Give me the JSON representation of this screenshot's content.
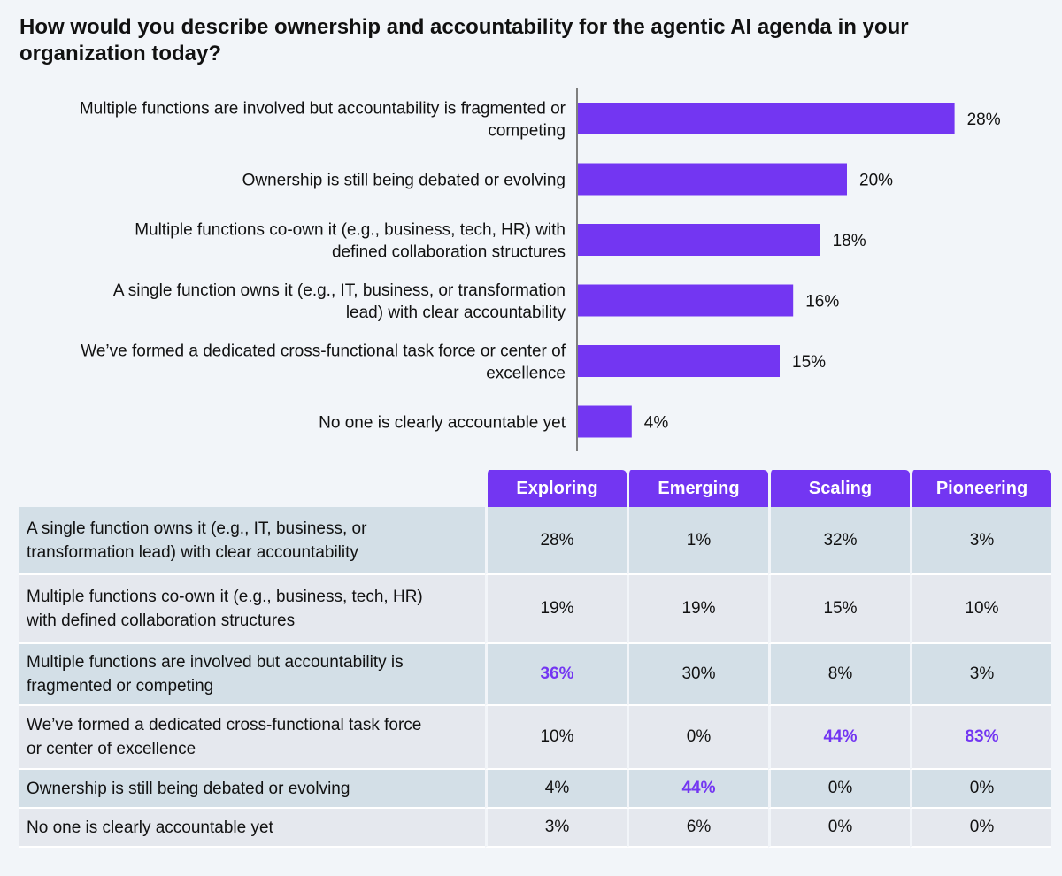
{
  "title": "How would you describe ownership and accountability for the agentic AI agenda in your organization today?",
  "chart_data": {
    "type": "bar",
    "orientation": "horizontal",
    "categories": [
      [
        "Multiple functions are involved but accountability is fragmented or",
        "competing"
      ],
      [
        "Ownership is still being debated or evolving"
      ],
      [
        "Multiple functions co-own it (e.g., business, tech, HR) with",
        "defined collaboration structures"
      ],
      [
        "A single function owns it (e.g., IT, business, or transformation",
        "lead) with clear accountability"
      ],
      [
        "We’ve formed a dedicated cross-functional task force or center of",
        "excellence"
      ],
      [
        "No one is clearly accountable yet"
      ]
    ],
    "values": [
      28,
      20,
      18,
      16,
      15,
      4
    ],
    "value_labels": [
      "28%",
      "20%",
      "18%",
      "16%",
      "15%",
      "4%"
    ],
    "xlim": [
      0,
      30
    ],
    "bar_color": "#7336f2",
    "grid": false
  },
  "table": {
    "columns": [
      "Exploring",
      "Emerging",
      "Scaling",
      "Pioneering"
    ],
    "header_color": "#7336f2",
    "highlight_color": "#7336f2",
    "rows": [
      {
        "label": [
          "A single function owns it (e.g., IT, business, or",
          "transformation lead) with clear accountability"
        ],
        "values": [
          "28%",
          "1%",
          "32%",
          "3%"
        ],
        "highlight": [
          false,
          false,
          false,
          false
        ]
      },
      {
        "label": [
          "Multiple functions co-own it (e.g., business, tech, HR)",
          "with defined collaboration structures"
        ],
        "values": [
          "19%",
          "19%",
          "15%",
          "10%"
        ],
        "highlight": [
          false,
          false,
          false,
          false
        ]
      },
      {
        "label": [
          "Multiple functions are involved but accountability is",
          "fragmented or competing"
        ],
        "values": [
          "36%",
          "30%",
          "8%",
          "3%"
        ],
        "highlight": [
          true,
          false,
          false,
          false
        ]
      },
      {
        "label": [
          "We’ve formed a dedicated cross-functional task force",
          "or center of excellence"
        ],
        "values": [
          "10%",
          "0%",
          "44%",
          "83%"
        ],
        "highlight": [
          false,
          false,
          true,
          true
        ]
      },
      {
        "label": [
          "Ownership is still being debated or evolving"
        ],
        "values": [
          "4%",
          "44%",
          "0%",
          "0%"
        ],
        "highlight": [
          false,
          true,
          false,
          false
        ]
      },
      {
        "label": [
          "No one is clearly accountable yet"
        ],
        "values": [
          "3%",
          "6%",
          "0%",
          "0%"
        ],
        "highlight": [
          false,
          false,
          false,
          false
        ]
      }
    ]
  }
}
